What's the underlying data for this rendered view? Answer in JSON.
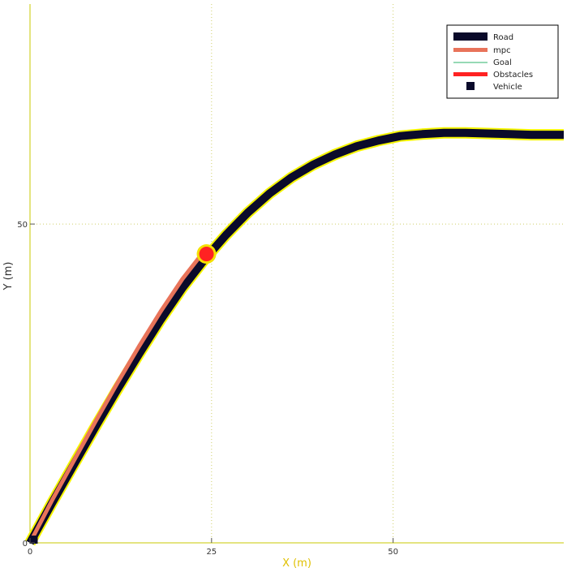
{
  "chart_data": {
    "type": "line",
    "title": "",
    "xlabel": "X (m)",
    "ylabel": "Y (m)",
    "xlim": [
      0,
      73.5
    ],
    "ylim": [
      0,
      84.5
    ],
    "x_ticks": [
      0,
      25,
      50
    ],
    "x_tick_labels": [
      "0",
      "25",
      "50"
    ],
    "y_ticks": [
      0,
      50
    ],
    "y_tick_labels": [
      "0",
      "50"
    ],
    "grid": true,
    "legend_position": "top-right",
    "colors": {
      "road": "#0a0a2a",
      "road_edge": "#f5f500",
      "mpc": "#e8735a",
      "goal": "#2db36b",
      "obstacle": "#ff2222",
      "obstacle_halo": "#f5e000",
      "vehicle": "#0a0a2a",
      "grid": "#cfcf6a",
      "axis": "#c8c800"
    },
    "series": [
      {
        "name": "Road",
        "x": [
          0,
          3,
          6,
          9,
          12,
          15,
          18,
          21,
          24,
          25,
          27,
          30,
          33,
          36,
          39,
          42,
          45,
          48,
          51,
          54,
          57,
          60,
          63,
          66,
          69,
          73.5
        ],
        "y": [
          0,
          6.2,
          12.2,
          18.2,
          24.0,
          29.6,
          35.0,
          40.0,
          44.4,
          45.7,
          48.3,
          51.8,
          54.8,
          57.3,
          59.3,
          60.9,
          62.2,
          63.1,
          63.8,
          64.1,
          64.3,
          64.3,
          64.2,
          64.1,
          64.0,
          64.0
        ]
      },
      {
        "name": "mpc",
        "x": [
          0.4,
          3,
          6,
          9,
          12,
          15,
          18,
          21,
          23.8
        ],
        "y": [
          0.9,
          6.6,
          12.8,
          19.0,
          25.0,
          30.8,
          36.3,
          41.4,
          45.5
        ]
      },
      {
        "name": "Goal",
        "x": [],
        "y": []
      }
    ],
    "obstacles": [
      {
        "name": "Obstacles",
        "x": 24.3,
        "y": 45.3
      }
    ],
    "vehicle": {
      "name": "Vehicle",
      "x": 0.5,
      "y": 0.5
    }
  }
}
